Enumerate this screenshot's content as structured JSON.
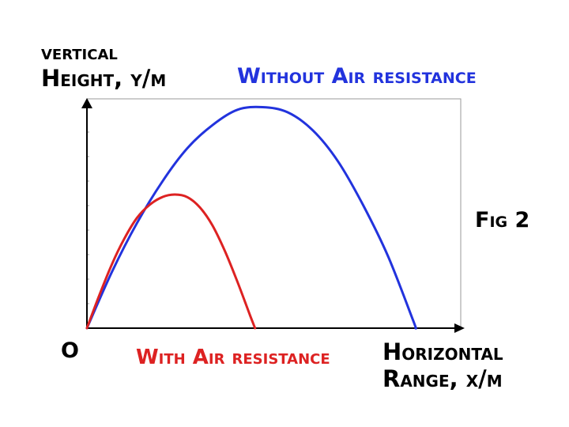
{
  "chart_data": {
    "type": "line",
    "ylabel_line1": "vertical",
    "ylabel_line2": "Height, y/m",
    "xlabel_line1": "Horizontal",
    "xlabel_line2": "Range, x/m",
    "origin_label": "O",
    "figure_label": "Fig 2",
    "grid": false,
    "series": [
      {
        "name": "Without Air resistance",
        "color": "#2233dd",
        "points": [
          [
            0.0,
            0.0
          ],
          [
            0.5,
            2.2
          ],
          [
            1.0,
            4.1
          ],
          [
            1.5,
            5.7
          ],
          [
            2.0,
            7.0
          ],
          [
            2.5,
            7.9
          ],
          [
            3.0,
            8.5
          ],
          [
            3.5,
            8.6
          ],
          [
            4.0,
            8.4
          ],
          [
            4.5,
            7.7
          ],
          [
            5.0,
            6.5
          ],
          [
            5.5,
            4.8
          ],
          [
            6.0,
            2.8
          ],
          [
            6.5,
            0.3
          ],
          [
            6.55,
            0.0
          ]
        ]
      },
      {
        "name": "With Air resistance",
        "color": "#dd2222",
        "points": [
          [
            0.0,
            0.0
          ],
          [
            0.25,
            1.3
          ],
          [
            0.5,
            2.5
          ],
          [
            0.75,
            3.5
          ],
          [
            1.0,
            4.3
          ],
          [
            1.25,
            4.8
          ],
          [
            1.5,
            5.1
          ],
          [
            1.75,
            5.2
          ],
          [
            2.0,
            5.1
          ],
          [
            2.25,
            4.7
          ],
          [
            2.5,
            4.0
          ],
          [
            2.75,
            3.0
          ],
          [
            3.0,
            1.8
          ],
          [
            3.25,
            0.5
          ],
          [
            3.35,
            0.0
          ]
        ]
      }
    ]
  }
}
